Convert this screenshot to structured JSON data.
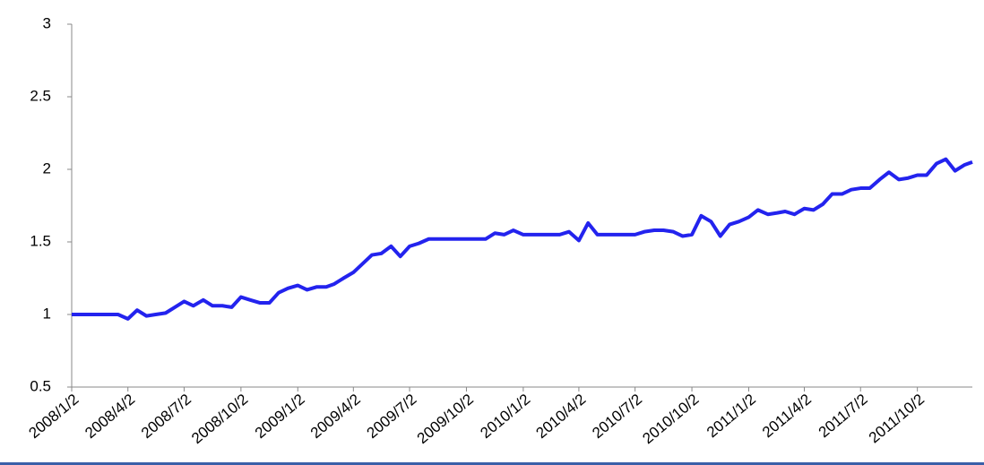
{
  "chart_data": {
    "type": "line",
    "color": "#2323ee",
    "x": [
      "2008/1/2",
      "2008/1/17",
      "2008/2/2",
      "2008/2/17",
      "2008/3/2",
      "2008/3/17",
      "2008/4/2",
      "2008/4/17",
      "2008/5/2",
      "2008/5/17",
      "2008/6/2",
      "2008/6/17",
      "2008/7/2",
      "2008/7/17",
      "2008/8/2",
      "2008/8/17",
      "2008/9/2",
      "2008/9/17",
      "2008/10/2",
      "2008/10/17",
      "2008/11/2",
      "2008/11/17",
      "2008/12/2",
      "2008/12/17",
      "2009/1/2",
      "2009/1/17",
      "2009/2/2",
      "2009/2/17",
      "2009/3/2",
      "2009/3/17",
      "2009/4/2",
      "2009/4/17",
      "2009/5/2",
      "2009/5/17",
      "2009/6/2",
      "2009/6/17",
      "2009/7/2",
      "2009/7/17",
      "2009/8/2",
      "2009/8/17",
      "2009/9/2",
      "2009/9/17",
      "2009/10/2",
      "2009/10/17",
      "2009/11/2",
      "2009/11/17",
      "2009/12/2",
      "2009/12/17",
      "2010/1/2",
      "2010/1/17",
      "2010/2/2",
      "2010/2/17",
      "2010/3/2",
      "2010/3/17",
      "2010/4/2",
      "2010/4/17",
      "2010/5/2",
      "2010/5/17",
      "2010/6/2",
      "2010/6/17",
      "2010/7/2",
      "2010/7/17",
      "2010/8/2",
      "2010/8/17",
      "2010/9/2",
      "2010/9/17",
      "2010/10/2",
      "2010/10/17",
      "2010/11/2",
      "2010/11/17",
      "2010/12/2",
      "2010/12/17",
      "2011/1/2",
      "2011/1/17",
      "2011/2/2",
      "2011/2/17",
      "2011/3/2",
      "2011/3/17",
      "2011/4/2",
      "2011/4/17",
      "2011/5/2",
      "2011/5/17",
      "2011/6/2",
      "2011/6/17",
      "2011/7/2",
      "2011/7/17",
      "2011/8/2",
      "2011/8/17",
      "2011/9/2",
      "2011/9/17",
      "2011/10/2",
      "2011/10/17",
      "2011/11/2",
      "2011/11/17",
      "2011/12/2",
      "2011/12/17",
      "2011/12/30"
    ],
    "values": [
      1.0,
      1.0,
      1.0,
      1.0,
      1.0,
      1.0,
      0.97,
      1.03,
      0.99,
      1.0,
      1.01,
      1.05,
      1.09,
      1.06,
      1.1,
      1.06,
      1.06,
      1.05,
      1.12,
      1.1,
      1.08,
      1.08,
      1.15,
      1.18,
      1.2,
      1.17,
      1.19,
      1.19,
      1.21,
      1.25,
      1.29,
      1.35,
      1.41,
      1.42,
      1.47,
      1.4,
      1.47,
      1.49,
      1.52,
      1.52,
      1.52,
      1.52,
      1.52,
      1.52,
      1.52,
      1.56,
      1.55,
      1.58,
      1.55,
      1.55,
      1.55,
      1.55,
      1.55,
      1.57,
      1.51,
      1.63,
      1.55,
      1.55,
      1.55,
      1.55,
      1.55,
      1.57,
      1.58,
      1.58,
      1.57,
      1.54,
      1.55,
      1.68,
      1.64,
      1.54,
      1.62,
      1.64,
      1.67,
      1.72,
      1.69,
      1.7,
      1.71,
      1.69,
      1.73,
      1.72,
      1.76,
      1.83,
      1.83,
      1.86,
      1.87,
      1.87,
      1.93,
      1.98,
      1.93,
      1.94,
      1.96,
      1.96,
      2.04,
      2.07,
      1.99,
      2.03,
      2.05
    ],
    "xlim": [
      "2008/1/2",
      "2011/12/30"
    ],
    "xticks": [
      "2008/1/2",
      "2008/4/2",
      "2008/7/2",
      "2008/10/2",
      "2009/1/2",
      "2009/4/2",
      "2009/7/2",
      "2009/10/2",
      "2010/1/2",
      "2010/4/2",
      "2010/7/2",
      "2010/10/2",
      "2011/1/2",
      "2011/4/2",
      "2011/7/2",
      "2011/10/2"
    ],
    "ylim": [
      0.5,
      3
    ],
    "yticks": [
      0.5,
      1,
      1.5,
      2,
      2.5,
      3
    ],
    "grid": false
  }
}
